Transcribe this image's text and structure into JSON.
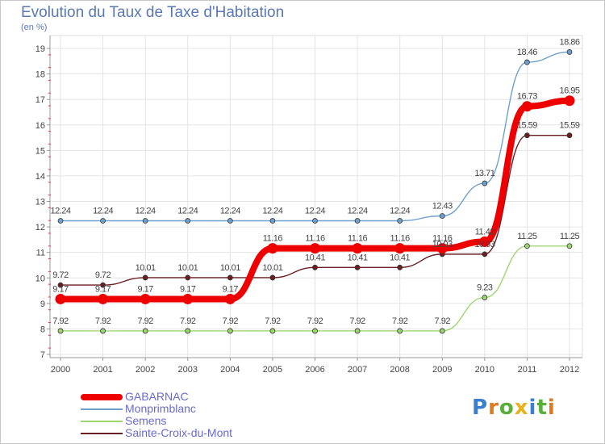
{
  "title": "Evolution du Taux de Taxe d'Habitation",
  "subtitle": "(en %)",
  "logo_text": "Proxiti",
  "chart_data": {
    "type": "line",
    "x": [
      "2000",
      "2001",
      "2002",
      "2003",
      "2004",
      "2005",
      "2006",
      "2007",
      "2008",
      "2009",
      "2010",
      "2011",
      "2012"
    ],
    "ylim": [
      7,
      19
    ],
    "yticks": [
      "7",
      "8",
      "9",
      "10",
      "11",
      "12",
      "13",
      "14",
      "15",
      "16",
      "17",
      "18",
      "19"
    ],
    "grid": true,
    "legend_position": "bottom-left",
    "series": [
      {
        "name": "GABARNAC",
        "color": "#ee0000",
        "values": [
          9.17,
          9.17,
          9.17,
          9.17,
          9.17,
          11.16,
          11.16,
          11.16,
          11.16,
          11.16,
          11.42,
          16.73,
          16.95
        ],
        "labels": [
          "9.17",
          "9.17",
          "9.17",
          "9.17",
          "9.17",
          "11.16",
          "11.16",
          "11.16",
          "11.16",
          "11.16",
          "11.42",
          "16.73",
          "16.95"
        ]
      },
      {
        "name": "Monprimblanc",
        "color": "#6fa0cc",
        "values": [
          12.24,
          12.24,
          12.24,
          12.24,
          12.24,
          12.24,
          12.24,
          12.24,
          12.24,
          12.43,
          13.71,
          18.46,
          18.86
        ],
        "labels": [
          "12.24",
          "12.24",
          "12.24",
          "12.24",
          "12.24",
          "12.24",
          "12.24",
          "12.24",
          "12.24",
          "12.43",
          "13.71",
          "18.46",
          "18.86"
        ]
      },
      {
        "name": "Semens",
        "color": "#9ed672",
        "values": [
          7.92,
          7.92,
          7.92,
          7.92,
          7.92,
          7.92,
          7.92,
          7.92,
          7.92,
          7.92,
          9.23,
          11.25,
          11.25
        ],
        "labels": [
          "7.92",
          "7.92",
          "7.92",
          "7.92",
          "7.92",
          "7.92",
          "7.92",
          "7.92",
          "7.92",
          "7.92",
          "9.23",
          "11.25",
          "11.25"
        ]
      },
      {
        "name": "Sainte-Croix-du-Mont",
        "color": "#6b1f24",
        "values": [
          9.72,
          9.72,
          10.01,
          10.01,
          10.01,
          10.01,
          10.41,
          10.41,
          10.41,
          10.93,
          10.93,
          15.59,
          15.59
        ],
        "labels": [
          "9.72",
          "9.72",
          "10.01",
          "10.01",
          "10.01",
          "10.01",
          "10.41",
          "10.41",
          "10.41",
          "10.93",
          "10.93",
          "15.59",
          "15.59"
        ]
      }
    ]
  }
}
